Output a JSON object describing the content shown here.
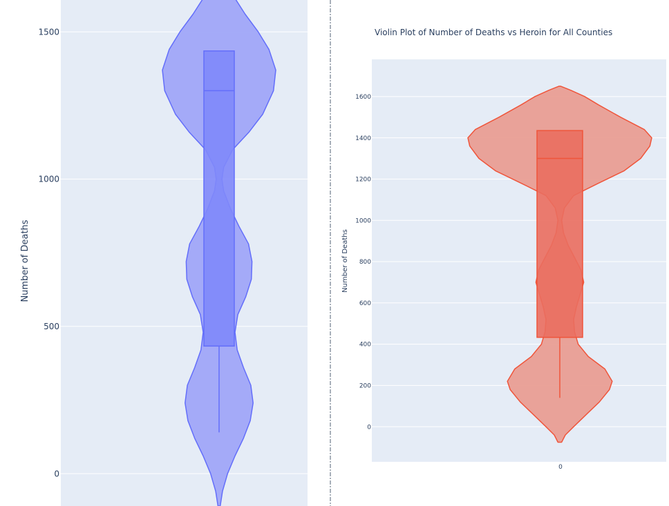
{
  "colors": {
    "plot_bg": "#e5ecf6",
    "grid": "#ffffff",
    "text": "#2a3f5f",
    "divider": "#8c96a3",
    "left_line": "#636efa",
    "left_fill": "#a0a6f8",
    "left_box": "#7f88fa",
    "right_line": "#ef553b",
    "right_fill": "#e99e94",
    "right_box": "#ea6e5f"
  },
  "chart_data": [
    {
      "type": "violin",
      "title": "",
      "xlabel": "",
      "ylabel": "Number of Deaths",
      "ylim": [
        -110,
        1690
      ],
      "yticks": [
        0,
        500,
        1000,
        1500
      ],
      "grid": true,
      "series": [
        {
          "box": {
            "q1": 433,
            "median": 1300,
            "q3": 1435,
            "whisker_low": 140,
            "whisker_high": 1435
          },
          "range": [
            -110,
            1690
          ],
          "density": [
            [
              -110,
              0.02
            ],
            [
              -60,
              0.06
            ],
            [
              0,
              0.15
            ],
            [
              60,
              0.28
            ],
            [
              120,
              0.43
            ],
            [
              180,
              0.55
            ],
            [
              240,
              0.6
            ],
            [
              300,
              0.56
            ],
            [
              360,
              0.43
            ],
            [
              420,
              0.32
            ],
            [
              480,
              0.28
            ],
            [
              540,
              0.33
            ],
            [
              600,
              0.47
            ],
            [
              660,
              0.57
            ],
            [
              720,
              0.58
            ],
            [
              780,
              0.52
            ],
            [
              840,
              0.35
            ],
            [
              900,
              0.2
            ],
            [
              960,
              0.08
            ],
            [
              1000,
              0.05
            ],
            [
              1040,
              0.08
            ],
            [
              1100,
              0.24
            ],
            [
              1160,
              0.53
            ],
            [
              1220,
              0.77
            ],
            [
              1300,
              0.96
            ],
            [
              1370,
              1.0
            ],
            [
              1440,
              0.88
            ],
            [
              1500,
              0.69
            ],
            [
              1560,
              0.46
            ],
            [
              1620,
              0.26
            ],
            [
              1660,
              0.14
            ],
            [
              1690,
              0.01
            ]
          ]
        }
      ]
    },
    {
      "type": "violin",
      "title": "Violin Plot of Number of Deaths vs Heroin for All Counties",
      "xlabel": "",
      "ylabel": "Number of Deaths",
      "categories": [
        "0"
      ],
      "ylim": [
        -170,
        1780
      ],
      "yticks": [
        0,
        200,
        400,
        600,
        800,
        1000,
        1200,
        1400,
        1600
      ],
      "grid": true,
      "series": [
        {
          "box": {
            "q1": 433,
            "median": 1300,
            "q3": 1435,
            "whisker_low": 140,
            "whisker_high": 1435
          },
          "range": [
            -75,
            1650
          ],
          "density": [
            [
              -75,
              0.02
            ],
            [
              -40,
              0.06
            ],
            [
              0,
              0.15
            ],
            [
              60,
              0.29
            ],
            [
              120,
              0.43
            ],
            [
              180,
              0.54
            ],
            [
              220,
              0.57
            ],
            [
              280,
              0.49
            ],
            [
              340,
              0.31
            ],
            [
              400,
              0.2
            ],
            [
              460,
              0.16
            ],
            [
              520,
              0.15
            ],
            [
              580,
              0.18
            ],
            [
              640,
              0.22
            ],
            [
              700,
              0.26
            ],
            [
              760,
              0.23
            ],
            [
              820,
              0.16
            ],
            [
              880,
              0.09
            ],
            [
              940,
              0.04
            ],
            [
              1000,
              0.02
            ],
            [
              1060,
              0.05
            ],
            [
              1120,
              0.15
            ],
            [
              1180,
              0.42
            ],
            [
              1240,
              0.7
            ],
            [
              1300,
              0.88
            ],
            [
              1360,
              0.98
            ],
            [
              1400,
              1.0
            ],
            [
              1440,
              0.92
            ],
            [
              1500,
              0.66
            ],
            [
              1560,
              0.42
            ],
            [
              1600,
              0.27
            ],
            [
              1630,
              0.12
            ],
            [
              1650,
              0.01
            ]
          ]
        }
      ]
    }
  ]
}
